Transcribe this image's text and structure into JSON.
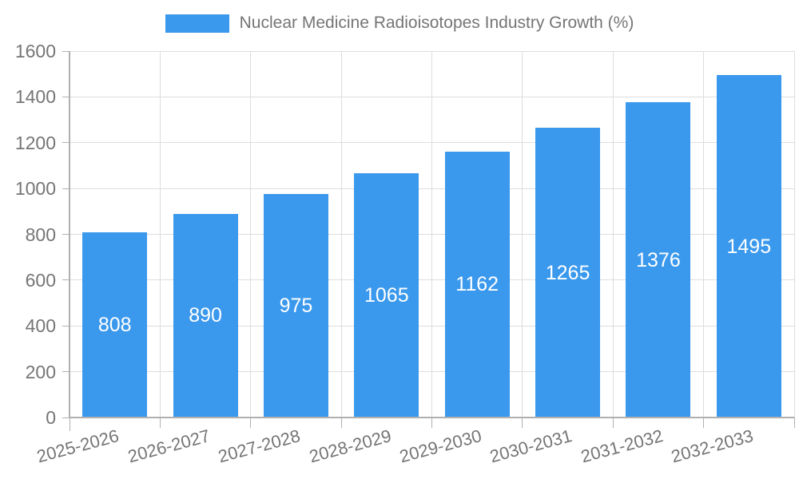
{
  "legend": {
    "label": "Nuclear Medicine Radioisotopes Industry Growth (%)"
  },
  "colors": {
    "background": "#FFFFFF",
    "bar": "#3B99ED",
    "muted_text": "#757575",
    "grid": "#DDDDDD",
    "axis": "#B0B0B0",
    "bar_value_text": "#FFFFFF"
  },
  "chart_data": {
    "type": "bar",
    "title": "Nuclear Medicine Radioisotopes Industry Growth (%)",
    "categories": [
      "2025-2026",
      "2026-2027",
      "2027-2028",
      "2028-2029",
      "2029-2030",
      "2030-2031",
      "2031-2032",
      "2032-2033"
    ],
    "values": [
      808,
      890,
      975,
      1065,
      1162,
      1265,
      1376,
      1495
    ],
    "xlabel": "",
    "ylabel": "",
    "ylim": [
      0,
      1600
    ],
    "yticks": [
      0,
      200,
      400,
      600,
      800,
      1000,
      1200,
      1400,
      1600
    ],
    "grid": true,
    "legend_position": "top",
    "value_labels": "inside-center",
    "xtick_rotation_deg": -15
  }
}
